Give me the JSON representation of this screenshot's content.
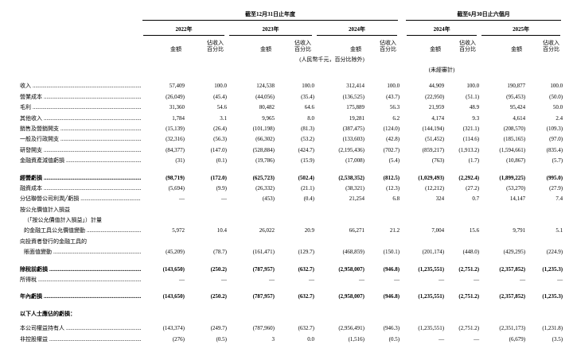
{
  "table": {
    "period_groups": [
      {
        "label": "截至12月31日止年度",
        "years": [
          "2022年",
          "2023年",
          "2024年"
        ]
      },
      {
        "label": "截至6月30日止六個月",
        "years": [
          "2024年",
          "2025年"
        ]
      }
    ],
    "subheaders": {
      "amount": "金額",
      "pct": [
        "佔收入",
        "百分比"
      ]
    },
    "notes": {
      "units": "(人民幣千元，百分比除外)",
      "unaudited": "(未經審計)"
    },
    "rows": [
      {
        "label": "收入",
        "leader": true,
        "values": [
          "57,409",
          "100.0",
          "124,538",
          "100.0",
          "312,414",
          "100.0",
          "44,909",
          "100.0",
          "190,877",
          "100.0"
        ]
      },
      {
        "label": "營業成本",
        "leader": true,
        "values": [
          "(26,049)",
          "(45.4)",
          "(44,056)",
          "(35.4)",
          "(136,525)",
          "(43.7)",
          "(22,950)",
          "(51.1)",
          "(95,453)",
          "(50.0)"
        ]
      },
      {
        "label": "毛利",
        "leader": true,
        "values": [
          "31,360",
          "54.6",
          "80,482",
          "64.6",
          "175,889",
          "56.3",
          "21,959",
          "48.9",
          "95,424",
          "50.0"
        ]
      },
      {
        "label": "其他收入",
        "leader": true,
        "values": [
          "1,784",
          "3.1",
          "9,965",
          "8.0",
          "19,281",
          "6.2",
          "4,174",
          "9.3",
          "4,614",
          "2.4"
        ]
      },
      {
        "label": "銷售及營銷開支",
        "leader": true,
        "values": [
          "(15,139)",
          "(26.4)",
          "(101,198)",
          "(81.3)",
          "(387,475)",
          "(124.0)",
          "(144,194)",
          "(321.1)",
          "(208,570)",
          "(109.3)"
        ]
      },
      {
        "label": "一般及行政開支",
        "leader": true,
        "values": [
          "(32,316)",
          "(56.3)",
          "(66,302)",
          "(53.2)",
          "(133,603)",
          "(42.8)",
          "(51,452)",
          "(114.6)",
          "(185,165)",
          "(97.0)"
        ]
      },
      {
        "label": "研發開支",
        "leader": true,
        "values": [
          "(84,377)",
          "(147.0)",
          "(528,884)",
          "(424.7)",
          "(2,195,436)",
          "(702.7)",
          "(859,217)",
          "(1,913.2)",
          "(1,594,661)",
          "(835.4)"
        ]
      },
      {
        "label": "金融資產減值虧損",
        "leader": true,
        "values": [
          "(31)",
          "(0.1)",
          "(19,786)",
          "(15.9)",
          "(17,008)",
          "(5.4)",
          "(763)",
          "(1.7)",
          "(10,867)",
          "(5.7)"
        ]
      },
      {
        "type": "spacer"
      },
      {
        "label": "經營虧損",
        "leader": true,
        "bold": true,
        "values": [
          "(98,719)",
          "(172.0)",
          "(625,723)",
          "(502.4)",
          "(2,538,352)",
          "(812.5)",
          "(1,029,493)",
          "(2,292.4)",
          "(1,899,225)",
          "(995.0)"
        ]
      },
      {
        "label": "融資成本",
        "leader": true,
        "values": [
          "(5,694)",
          "(9.9)",
          "(26,332)",
          "(21.1)",
          "(38,321)",
          "(12.3)",
          "(12,212)",
          "(27.2)",
          "(53,270)",
          "(27.9)"
        ]
      },
      {
        "label": "分佔聯營公司利潤╱虧損",
        "leader": true,
        "values": [
          "—",
          "—",
          "(453)",
          "(0.4)",
          "21,254",
          "6.8",
          "324",
          "0.7",
          "14,147",
          "7.4"
        ]
      },
      {
        "label": "按公允價值計入損益"
      },
      {
        "label": "（「按公允價值計入損益」）計量",
        "indent": true
      },
      {
        "label": "的金融工具公允價值變動",
        "leader": true,
        "indent": true,
        "values": [
          "5,972",
          "10.4",
          "26,022",
          "20.9",
          "66,271",
          "21.2",
          "7,004",
          "15.6",
          "9,791",
          "5.1"
        ]
      },
      {
        "label": "向投資者發行的金融工具的"
      },
      {
        "label": "賬面值變動",
        "leader": true,
        "indent": true,
        "values": [
          "(45,209)",
          "(78.7)",
          "(161,471)",
          "(129.7)",
          "(468,859)",
          "(150.1)",
          "(201,174)",
          "(448.0)",
          "(429,295)",
          "(224.9)"
        ]
      },
      {
        "type": "spacer"
      },
      {
        "label": "除稅前虧損",
        "leader": true,
        "bold": true,
        "values": [
          "(143,650)",
          "(250.2)",
          "(787,957)",
          "(632.7)",
          "(2,958,007)",
          "(946.8)",
          "(1,235,551)",
          "(2,751.2)",
          "(2,357,852)",
          "(1,235.3)"
        ]
      },
      {
        "label": "所得稅",
        "leader": true,
        "values": [
          "—",
          "—",
          "—",
          "—",
          "—",
          "—",
          "—",
          "—",
          "—",
          "—"
        ]
      },
      {
        "type": "spacer"
      },
      {
        "label": "年內虧損",
        "leader": true,
        "bold": true,
        "values": [
          "(143,650)",
          "(250.2)",
          "(787,957)",
          "(632.7)",
          "(2,958,007)",
          "(946.8)",
          "(1,235,551)",
          "(2,751.2)",
          "(2,357,852)",
          "(1,235.3)"
        ]
      },
      {
        "type": "spacer"
      },
      {
        "label": "以下人士應佔的虧損：",
        "bold": true
      },
      {
        "type": "spacer",
        "size": "sm"
      },
      {
        "label": "本公司權益持有人",
        "leader": true,
        "values": [
          "(143,374)",
          "(249.7)",
          "(787,960)",
          "(632.7)",
          "(2,956,491)",
          "(946.3)",
          "(1,235,551)",
          "(2,751.2)",
          "(2,351,173)",
          "(1,231.8)"
        ]
      },
      {
        "label": "非控股權益",
        "leader": true,
        "values": [
          "(276)",
          "(0.5)",
          "3",
          "0.0",
          "(1,516)",
          "(0.5)",
          "—",
          "—",
          "(6,679)",
          "(3.5)"
        ]
      }
    ]
  }
}
